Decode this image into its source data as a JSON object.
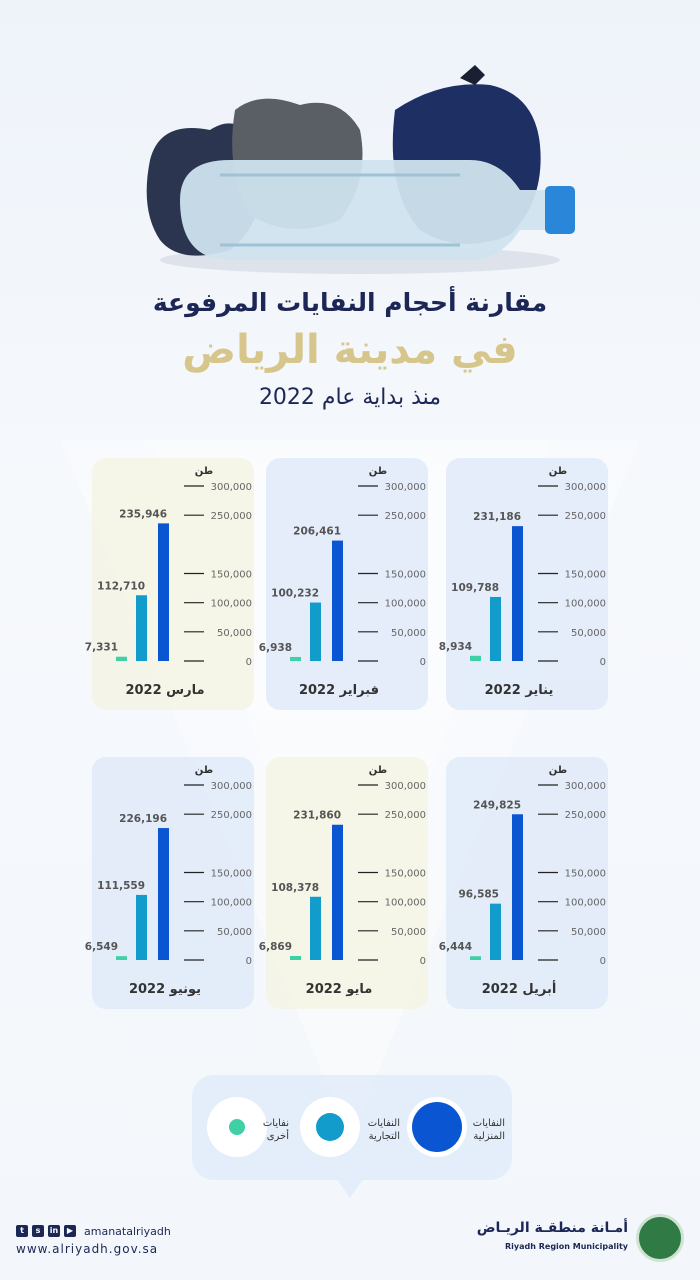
{
  "title": {
    "line1": "مقارنة أحجام النفايات المرفوعة",
    "line2": "في مدينة الرياض",
    "line3": "منذ بداية عام 2022"
  },
  "colors": {
    "household": "#0a56d2",
    "commercial": "#119ccb",
    "other": "#3fd0a6",
    "title_dark": "#1d2756",
    "title_gold": "#d7c68b"
  },
  "chart_data": {
    "type": "bar",
    "unit": "طن",
    "y_ticks": [
      "300,000",
      "250,000",
      "150,000",
      "100,000",
      "50,000",
      "0"
    ],
    "ylim": [
      0,
      300000
    ],
    "series": [
      {
        "name": "نفايات أخرى",
        "key": "other"
      },
      {
        "name": "النفايات التجارية",
        "key": "commercial"
      },
      {
        "name": "النفايات المنزلية",
        "key": "household"
      }
    ],
    "months": [
      {
        "label": "يناير 2022",
        "other": 8934,
        "commercial": 109788,
        "household": 231186,
        "other_label": "8,934",
        "commercial_label": "109,788",
        "household_label": "231,186"
      },
      {
        "label": "فبراير 2022",
        "other": 6938,
        "commercial": 100232,
        "household": 206461,
        "other_label": "6,938",
        "commercial_label": "100,232",
        "household_label": "206,461"
      },
      {
        "label": "مارس 2022",
        "other": 7331,
        "commercial": 112710,
        "household": 235946,
        "other_label": "7,331",
        "commercial_label": "112,710",
        "household_label": "235,946"
      },
      {
        "label": "أبريل 2022",
        "other": 6444,
        "commercial": 96585,
        "household": 249825,
        "other_label": "6,444",
        "commercial_label": "96,585",
        "household_label": "249,825"
      },
      {
        "label": "مايو 2022",
        "other": 6869,
        "commercial": 108378,
        "household": 231860,
        "other_label": "6,869",
        "commercial_label": "108,378",
        "household_label": "231,860"
      },
      {
        "label": "يونيو 2022",
        "other": 6549,
        "commercial": 111559,
        "household": 226196,
        "other_label": "6,549",
        "commercial_label": "111,559",
        "household_label": "226,196"
      }
    ]
  },
  "legend": {
    "household": "النفايات المنزلية",
    "commercial": "النفايات التجارية",
    "other": "نفايات أخرى"
  },
  "footer": {
    "handle": "amanatalriyadh",
    "website": "www.alriyadh.gov.sa",
    "logo_ar": "أمـانة منطقـة الريـاض",
    "logo_en": "Riyadh Region Municipality",
    "social_icons": [
      "twitter-icon",
      "snapchat-icon",
      "linkedin-icon",
      "youtube-icon"
    ]
  }
}
